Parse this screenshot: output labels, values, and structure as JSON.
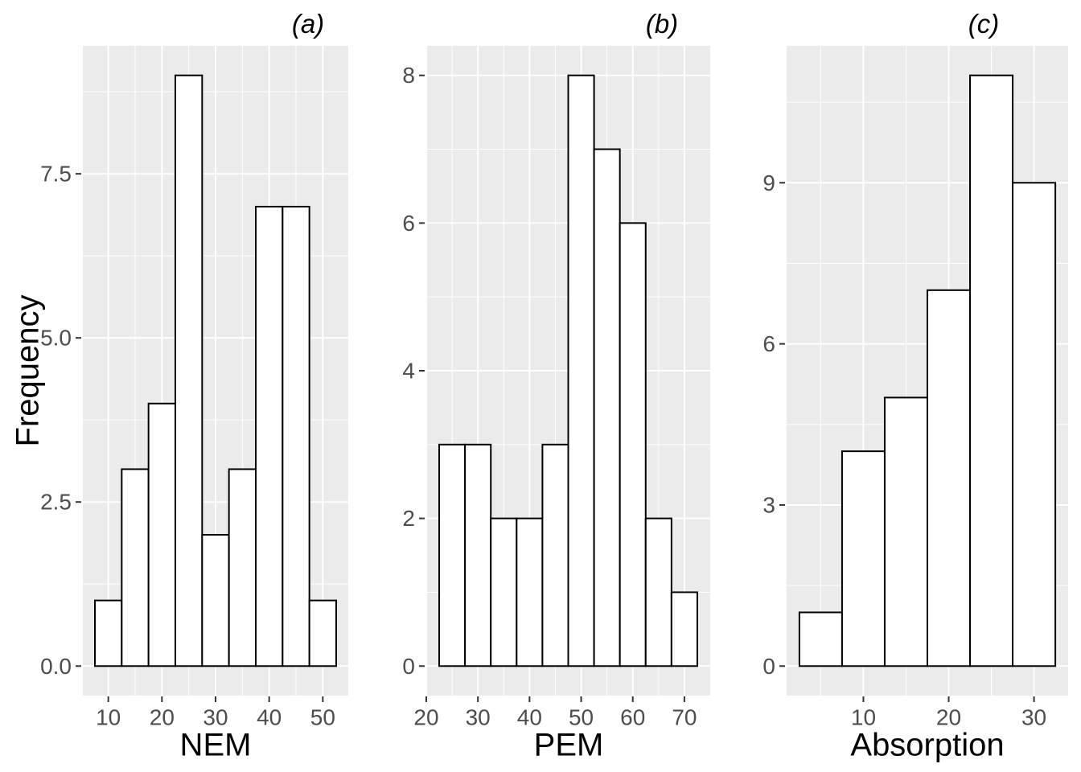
{
  "figure": {
    "ylabel": "Frequency",
    "colors": {
      "page_bg": "#FFFFFF",
      "panel_bg": "#EBEBEB",
      "grid": "#FFFFFF",
      "bar_fill": "#FFFFFF",
      "bar_stroke": "#000000",
      "tick_mark": "#333333",
      "tick_text": "#4D4D4D",
      "title_text": "#000000"
    }
  },
  "chart_data": [
    {
      "type": "bar",
      "subtype": "histogram",
      "title": "(a)",
      "xlabel": "NEM",
      "ylabel": "Frequency",
      "bin_start": 7.5,
      "bin_width": 5,
      "bin_edges": [
        7.5,
        12.5,
        17.5,
        22.5,
        27.5,
        32.5,
        37.5,
        42.5,
        47.5,
        52.5
      ],
      "counts": [
        1,
        3,
        4,
        9,
        2,
        3,
        7,
        7,
        1
      ],
      "xlim": [
        5.25,
        54.75
      ],
      "ylim": [
        -0.45,
        9.45
      ],
      "x_ticks": [
        10,
        20,
        30,
        40,
        50
      ],
      "x_tick_labels": [
        "10",
        "20",
        "30",
        "40",
        "50"
      ],
      "y_ticks": [
        0,
        2.5,
        5,
        7.5
      ],
      "y_tick_labels": [
        "0.0",
        "2.5",
        "5.0",
        "7.5"
      ],
      "x_minor_ticks": [
        15,
        25,
        35,
        45
      ],
      "y_minor_ticks": [
        1.25,
        3.75,
        6.25,
        8.75
      ],
      "grid": true,
      "legend": false
    },
    {
      "type": "bar",
      "subtype": "histogram",
      "title": "(b)",
      "xlabel": "PEM",
      "ylabel": "Frequency",
      "bin_start": 22.5,
      "bin_width": 5,
      "bin_edges": [
        22.5,
        27.5,
        32.5,
        37.5,
        42.5,
        47.5,
        52.5,
        57.5,
        62.5,
        67.5,
        72.5
      ],
      "counts": [
        3,
        3,
        2,
        2,
        3,
        8,
        7,
        6,
        2,
        1
      ],
      "xlim": [
        20,
        75
      ],
      "ylim": [
        -0.4,
        8.4
      ],
      "x_ticks": [
        20,
        30,
        40,
        50,
        60,
        70
      ],
      "x_tick_labels": [
        "20",
        "30",
        "40",
        "50",
        "60",
        "70"
      ],
      "y_ticks": [
        0,
        2,
        4,
        6,
        8
      ],
      "y_tick_labels": [
        "0",
        "2",
        "4",
        "6",
        "8"
      ],
      "x_minor_ticks": [
        25,
        35,
        45,
        55,
        65
      ],
      "y_minor_ticks": [
        1,
        3,
        5,
        7
      ],
      "grid": true,
      "legend": false
    },
    {
      "type": "bar",
      "subtype": "histogram",
      "title": "(c)",
      "xlabel": "Absorption",
      "ylabel": "Frequency",
      "bin_start": 2.5,
      "bin_width": 5,
      "bin_edges": [
        2.5,
        7.5,
        12.5,
        17.5,
        22.5,
        27.5,
        32.5
      ],
      "counts": [
        1,
        4,
        5,
        7,
        11,
        9
      ],
      "xlim": [
        1,
        34
      ],
      "ylim": [
        -0.55,
        11.55
      ],
      "x_ticks": [
        10,
        20,
        30
      ],
      "x_tick_labels": [
        "10",
        "20",
        "30"
      ],
      "y_ticks": [
        0,
        3,
        6,
        9
      ],
      "y_tick_labels": [
        "0",
        "3",
        "6",
        "9"
      ],
      "x_minor_ticks": [
        5,
        15,
        25
      ],
      "y_minor_ticks": [
        1.5,
        4.5,
        7.5,
        10.5
      ],
      "grid": true,
      "legend": false
    }
  ]
}
